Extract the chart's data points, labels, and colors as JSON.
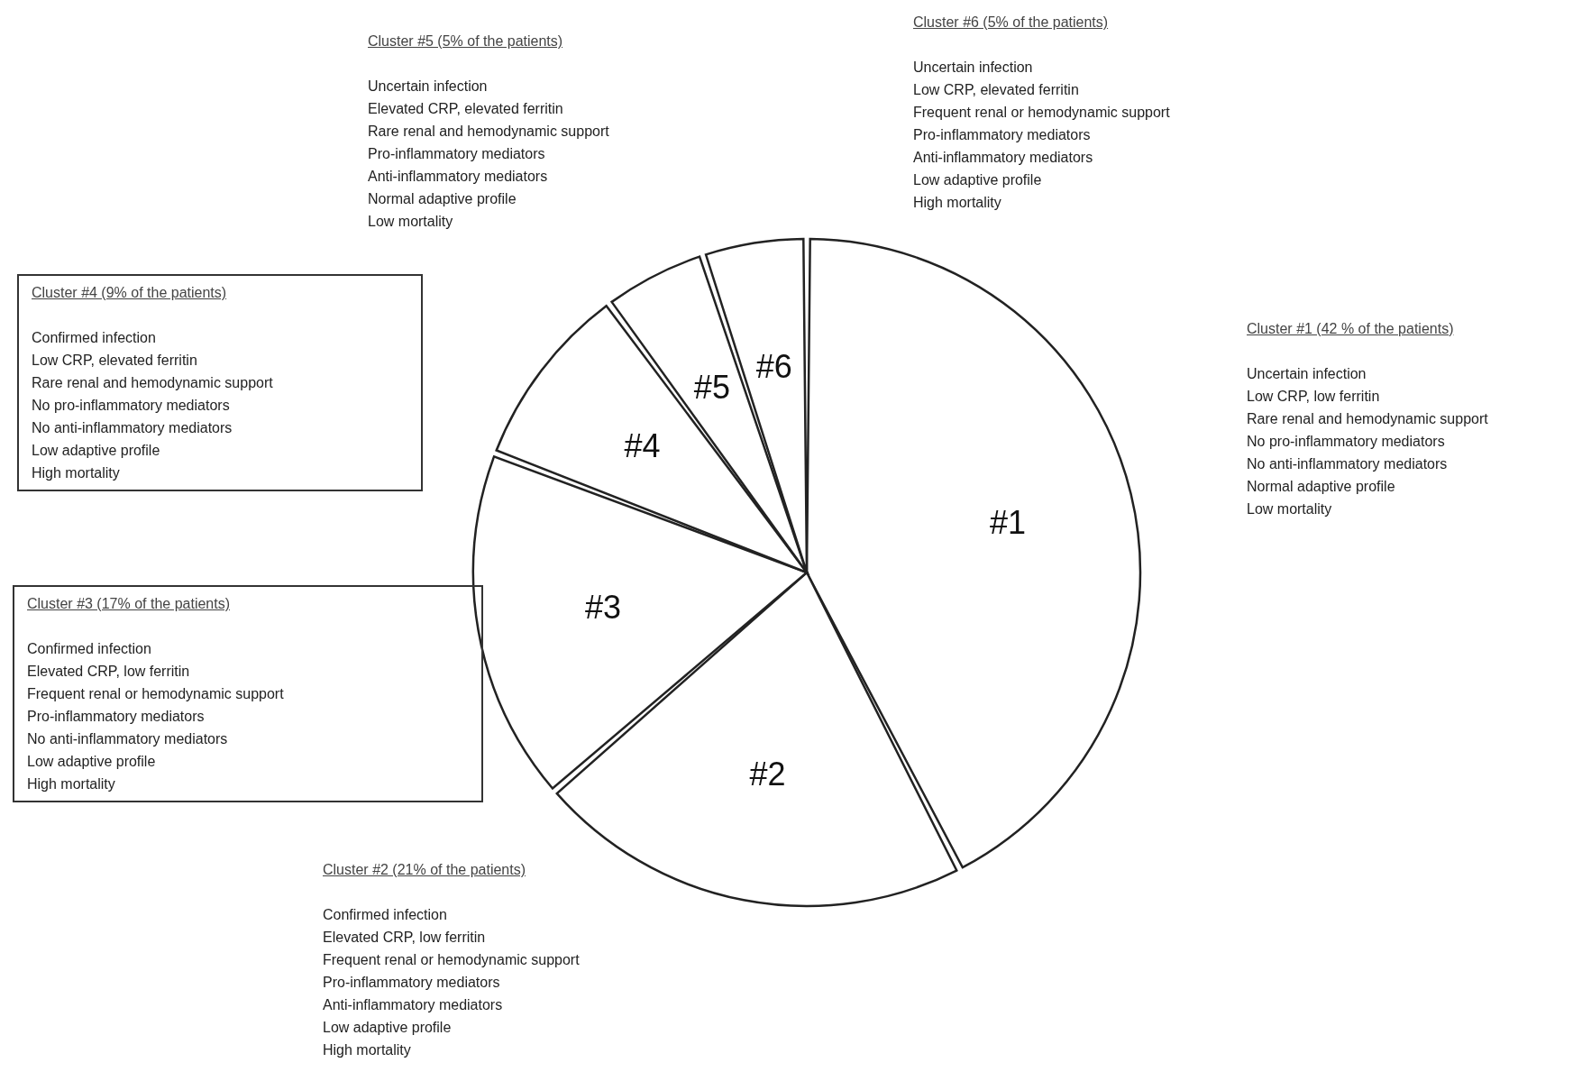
{
  "chart_data": {
    "type": "pie",
    "categories": [
      "#1",
      "#2",
      "#3",
      "#4",
      "#5",
      "#6"
    ],
    "values": [
      42,
      21,
      17,
      9,
      5,
      5
    ],
    "colors": [
      "#ffffff",
      "#ffffff",
      "#ffffff",
      "#ffffff",
      "#ffffff",
      "#ffffff"
    ],
    "annotations": [
      "Cluster #1 (42 % of the patients)\n\nUncertain infection\nLow CRP, low ferritin\nRare renal and hemodynamic support\nNo pro-inflammatory mediators\nNo anti-inflammatory mediators\nNormal adaptive profile\nLow mortality",
      "Cluster #2 (21% of the patients)\n\nConfirmed infection\nElevated CRP, low ferritin\nFrequent renal or hemodynamic support\nPro-inflammatory mediators\nAnti-inflammatory mediators\nLow adaptive profile\nHigh mortality",
      "Cluster #3 (17% of the patients)\n\nConfirmed infection\nElevated CRP, low ferritin\nFrequent renal or hemodynamic support\nPro-inflammatory mediators\nNo anti-inflammatory mediators\nLow adaptive profile\nHigh mortality",
      "Cluster #4 (9% of the patients)\n\nConfirmed infection\nLow CRP, elevated ferritin\nRare renal and hemodynamic support\nNo pro-inflammatory mediators\nNo anti-inflammatory mediators\nLow adaptive profile\nHigh mortality",
      "Cluster #5 (5% of the patients)\n\nUncertain infection\nElevated CRP, elevated ferritin\nRare renal and hemodynamic support\nPro-inflammatory mediators\nAnti-inflammatory mediators\nNormal adaptive profile\nLow mortality",
      "Cluster #6 (5% of the patients)\n\nUncertain infection\nLow CRP, elevated ferritin\nFrequent renal or hemodynamic support\nPro-inflammatory mediators\nAnti-inflammatory mediators\nLow adaptive profile\nHigh mortality"
    ]
  }
}
